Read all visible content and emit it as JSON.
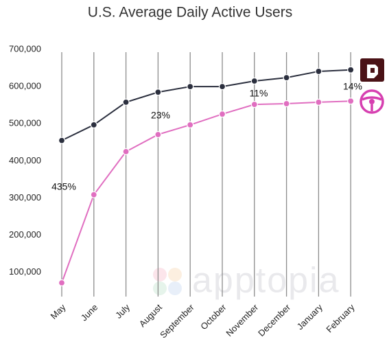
{
  "chart_data": {
    "type": "line",
    "title": "U.S. Average Daily Active Users",
    "watermark": "apptopia",
    "categories": [
      "May",
      "June",
      "July",
      "August",
      "September",
      "October",
      "November",
      "December",
      "January",
      "February"
    ],
    "series": [
      {
        "color": "#2b2f3e",
        "values": [
          455000,
          497000,
          558000,
          585000,
          600000,
          600000,
          615000,
          624000,
          641000,
          645000
        ]
      },
      {
        "color": "#e06ec0",
        "values": [
          72000,
          309000,
          425000,
          471000,
          497000,
          526000,
          552000,
          554000,
          558000,
          561000
        ]
      }
    ],
    "annotations": [
      "435%",
      "23%",
      "11%",
      "14%"
    ],
    "ylim": [
      35000,
      700000
    ],
    "yticks": [
      {
        "value": 100000,
        "label": "100,000"
      },
      {
        "value": 200000,
        "label": "200,000"
      },
      {
        "value": 300000,
        "label": "300,000"
      },
      {
        "value": 400000,
        "label": "400,000"
      },
      {
        "value": 500000,
        "label": "500,000"
      },
      {
        "value": 600000,
        "label": "600,000"
      },
      {
        "value": 700000,
        "label": "700,000"
      }
    ],
    "grid": true
  }
}
